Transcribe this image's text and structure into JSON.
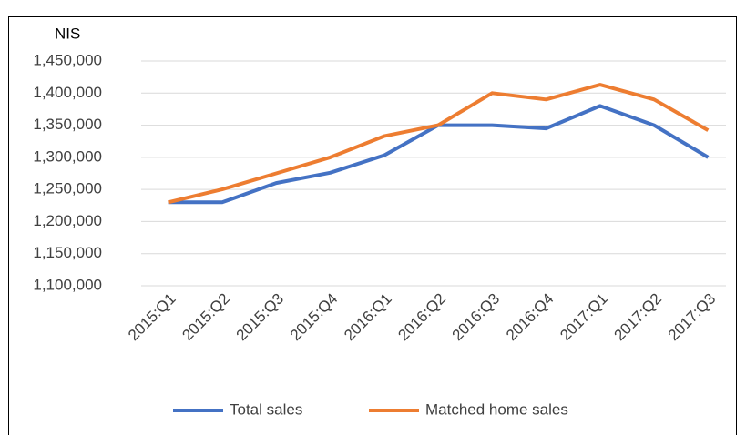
{
  "chart_data": {
    "type": "line",
    "y_label": "NIS",
    "categories": [
      "2015:Q1",
      "2015:Q2",
      "2015:Q3",
      "2015:Q4",
      "2016:Q1",
      "2016:Q2",
      "2016:Q3",
      "2016:Q4",
      "2017:Q1",
      "2017:Q2",
      "2017:Q3"
    ],
    "series": [
      {
        "name": "Total sales",
        "color": "#4472c4",
        "values": [
          1230000,
          1230000,
          1260000,
          1276000,
          1303000,
          1350000,
          1350000,
          1345000,
          1380000,
          1350000,
          1300000
        ]
      },
      {
        "name": "Matched home sales",
        "color": "#ed7d31",
        "values": [
          1230000,
          1250000,
          1275000,
          1300000,
          1333000,
          1350000,
          1400000,
          1390000,
          1413000,
          1390000,
          1342000
        ]
      }
    ],
    "ylim": [
      1100000,
      1450000
    ],
    "yticks": [
      {
        "value": 1100000,
        "label": "1,100,000"
      },
      {
        "value": 1150000,
        "label": "1,150,000"
      },
      {
        "value": 1200000,
        "label": "1,200,000"
      },
      {
        "value": 1250000,
        "label": "1,250,000"
      },
      {
        "value": 1300000,
        "label": "1,300,000"
      },
      {
        "value": 1350000,
        "label": "1,350,000"
      },
      {
        "value": 1400000,
        "label": "1,400,000"
      },
      {
        "value": 1450000,
        "label": "1,450,000"
      }
    ],
    "grid": true,
    "legend": "bottom"
  }
}
